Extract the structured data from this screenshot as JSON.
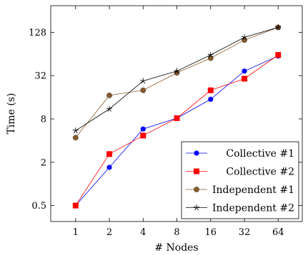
{
  "chart_data": {
    "type": "line",
    "xlabel": "# Nodes",
    "ylabel": "Time (s)",
    "x_scale": "log2",
    "y_scale": "log2",
    "x": [
      1,
      2,
      4,
      8,
      16,
      32,
      64
    ],
    "x_tick_labels": [
      "1",
      "2",
      "4",
      "8",
      "16",
      "32",
      "64"
    ],
    "y_ticks": [
      0.5,
      2,
      8,
      32,
      128
    ],
    "y_tick_labels": [
      "0.5",
      "2",
      "8",
      "32",
      "128"
    ],
    "xlim": [
      0.6,
      105
    ],
    "ylim": [
      0.3,
      300
    ],
    "grid": false,
    "legend_position": "bottom-right",
    "series": [
      {
        "name": "Collective #1",
        "color": "#0000ff",
        "marker": "circle",
        "values": [
          0.5,
          1.7,
          5.8,
          8.2,
          15.0,
          37.0,
          60.0
        ]
      },
      {
        "name": "Collective #2",
        "color": "#ff0000",
        "marker": "square",
        "values": [
          0.5,
          2.6,
          4.7,
          8.2,
          20.0,
          29.0,
          62.0
        ]
      },
      {
        "name": "Independent #1",
        "color": "#8b5a2b",
        "marker": "filled-circle",
        "values": [
          4.4,
          17.0,
          20.0,
          35.0,
          56.0,
          100.0,
          150.0
        ]
      },
      {
        "name": "Independent #2",
        "color": "#000000",
        "marker": "star",
        "values": [
          5.5,
          11.0,
          27.0,
          37.0,
          62.0,
          109.0,
          150.0
        ]
      }
    ]
  }
}
